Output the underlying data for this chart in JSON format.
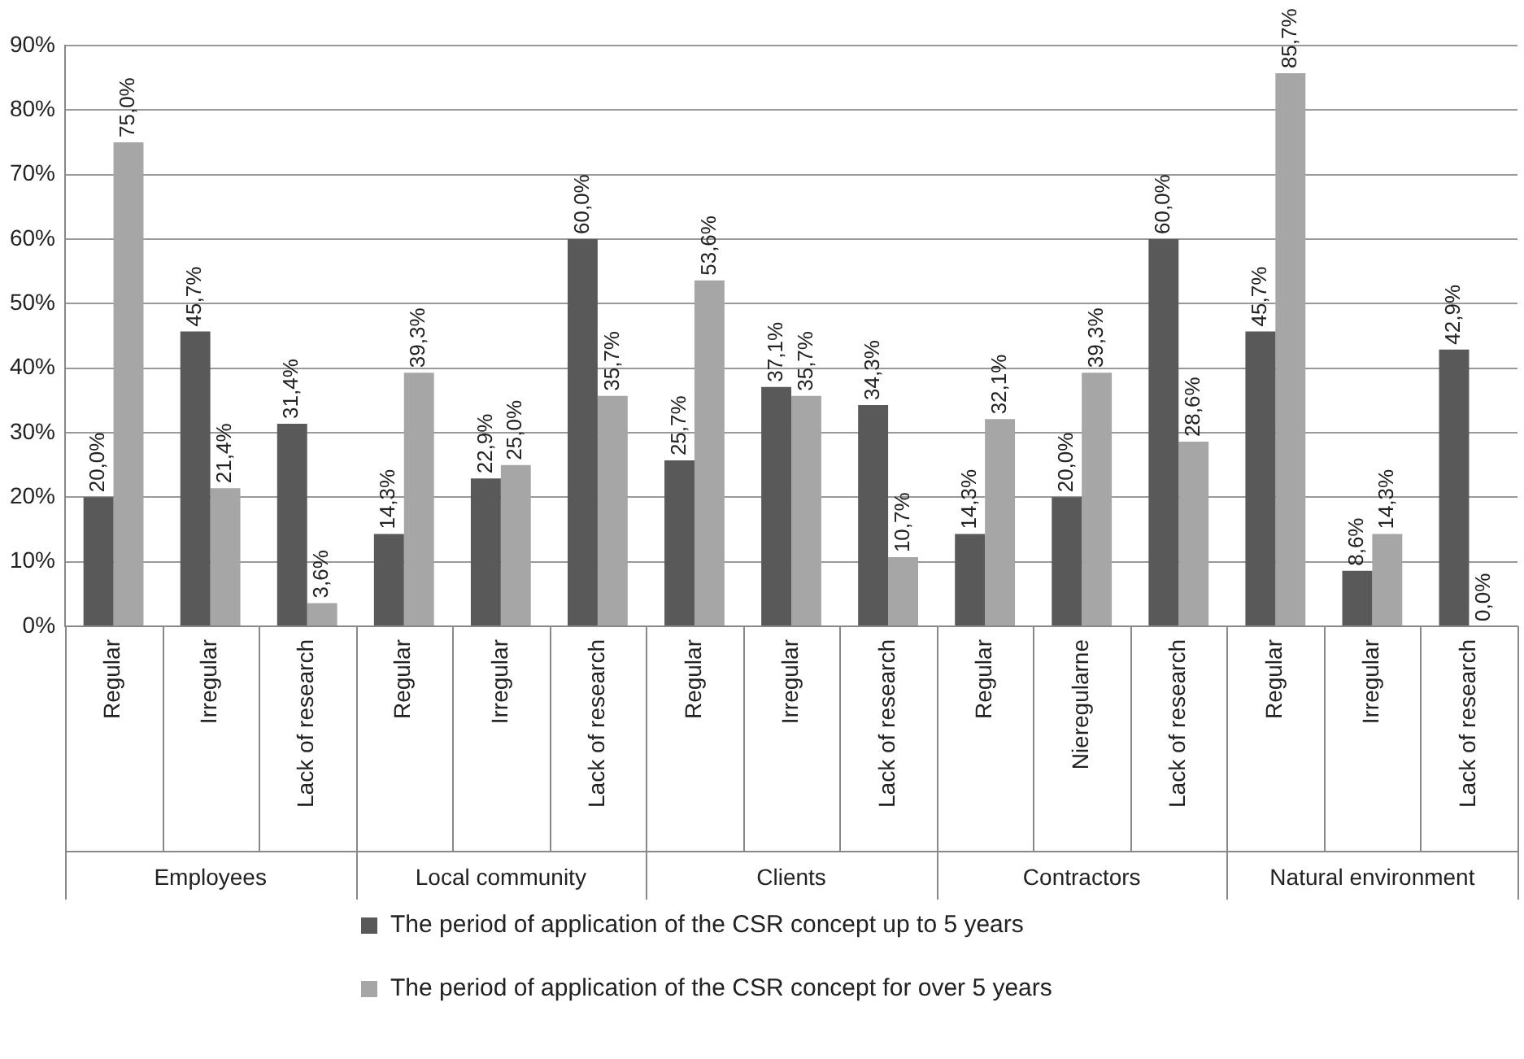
{
  "chart_data": {
    "type": "bar",
    "categories": [
      "Regular",
      "Irregular",
      "Lack of research",
      "Regular",
      "Irregular",
      "Lack of research",
      "Regular",
      "Irregular",
      "Lack of research",
      "Regular",
      "Nieregularne",
      "Lack of research",
      "Regular",
      "Irregular",
      "Lack of research"
    ],
    "annotations": [
      "Employees",
      "Local community",
      "Clients",
      "Contractors",
      "Natural environment"
    ],
    "series": [
      {
        "name": "The period of application of the CSR concept up to 5 years",
        "color": "#595959",
        "values": [
          20.0,
          45.7,
          31.4,
          14.3,
          22.9,
          60.0,
          25.7,
          37.1,
          34.3,
          14.3,
          20.0,
          60.0,
          45.7,
          8.6,
          42.9
        ],
        "value_labels": [
          "20,0%",
          "45,7%",
          "31,4%",
          "14,3%",
          "22,9%",
          "60,0%",
          "25,7%",
          "37,1%",
          "34,3%",
          "14,3%",
          "20,0%",
          "60,0%",
          "45,7%",
          "8,6%",
          "42,9%"
        ]
      },
      {
        "name": "The period of application of the CSR concept for over 5 years",
        "color": "#a6a6a6",
        "values": [
          75.0,
          21.4,
          3.6,
          39.3,
          25.0,
          35.7,
          53.6,
          35.7,
          10.7,
          32.1,
          39.3,
          28.6,
          85.7,
          14.3,
          0.0
        ],
        "value_labels": [
          "75,0%",
          "21,4%",
          "3,6%",
          "39,3%",
          "25,0%",
          "35,7%",
          "53,6%",
          "35,7%",
          "10,7%",
          "32,1%",
          "39,3%",
          "28,6%",
          "85,7%",
          "14,3%",
          "0,0%"
        ]
      }
    ],
    "ylim": [
      0,
      90
    ],
    "yticks": [
      {
        "value": 0,
        "label": "0%"
      },
      {
        "value": 10,
        "label": "10%"
      },
      {
        "value": 20,
        "label": "20%"
      },
      {
        "value": 30,
        "label": "30%"
      },
      {
        "value": 40,
        "label": "40%"
      },
      {
        "value": 50,
        "label": "50%"
      },
      {
        "value": 60,
        "label": "60%"
      },
      {
        "value": 70,
        "label": "70%"
      },
      {
        "value": 80,
        "label": "80%"
      },
      {
        "value": 90,
        "label": "90%"
      }
    ],
    "grid": "y",
    "legend": "bottom"
  }
}
